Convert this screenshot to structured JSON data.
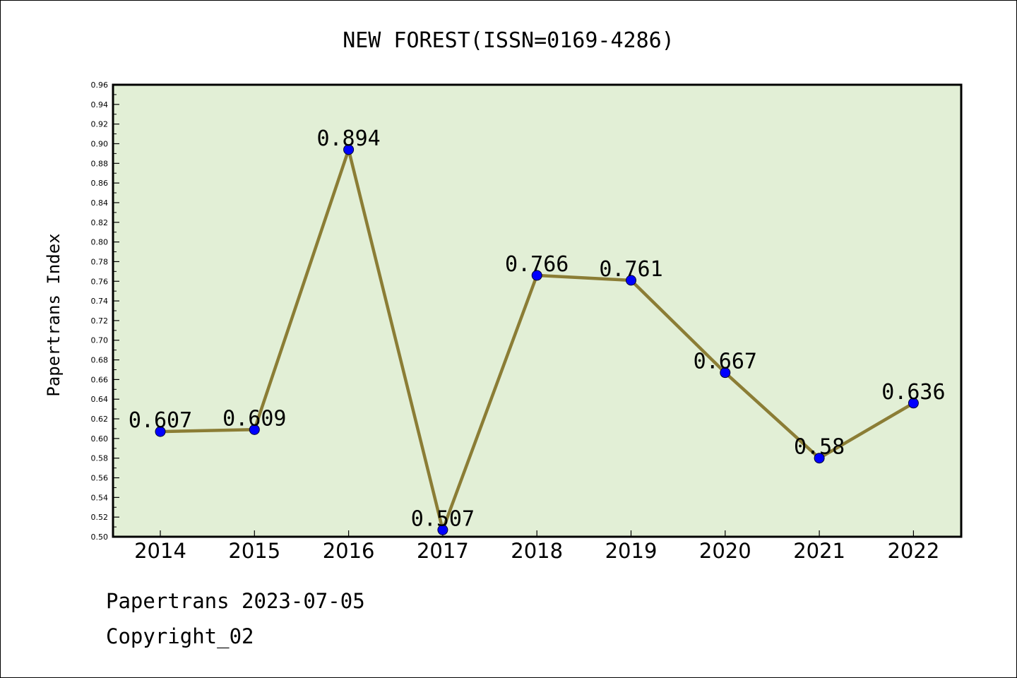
{
  "chart_data": {
    "type": "line",
    "title": "NEW FOREST(ISSN=0169-4286)",
    "xlabel": "",
    "ylabel": "Papertrans Index",
    "categories": [
      "2014",
      "2015",
      "2016",
      "2017",
      "2018",
      "2019",
      "2020",
      "2021",
      "2022"
    ],
    "values": [
      0.607,
      0.609,
      0.894,
      0.507,
      0.766,
      0.761,
      0.667,
      0.58,
      0.636
    ],
    "data_labels": [
      "0.607",
      "0.609",
      "0.894",
      "0.507",
      "0.766",
      "0.761",
      "0.667",
      "0.58",
      "0.636"
    ],
    "ylim": [
      0.5,
      0.96
    ],
    "yticks": [
      "0.50",
      "0.52",
      "0.54",
      "0.56",
      "0.58",
      "0.60",
      "0.62",
      "0.64",
      "0.66",
      "0.68",
      "0.70",
      "0.72",
      "0.74",
      "0.76",
      "0.78",
      "0.80",
      "0.82",
      "0.84",
      "0.86",
      "0.88",
      "0.90",
      "0.92",
      "0.94",
      "0.96"
    ],
    "grid": false,
    "legend": "none",
    "colors": {
      "plot_background": "#e2efd6",
      "line": "#8b7d35",
      "marker": "#0000ff"
    }
  },
  "footer": {
    "line1": "Papertrans 2023-07-05",
    "line2": "Copyright_02"
  }
}
